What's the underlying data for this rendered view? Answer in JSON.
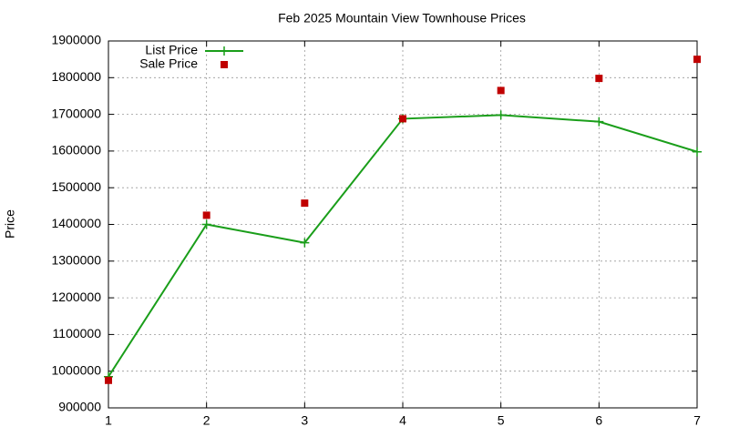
{
  "chart_data": {
    "type": "line",
    "title": "Feb 2025 Mountain View Townhouse Prices",
    "y_label": "Price",
    "x": [
      1,
      2,
      3,
      4,
      5,
      6,
      7
    ],
    "series": [
      {
        "name": "List Price",
        "color": "#1a9e1a",
        "style": "linespoints",
        "values": [
          985000,
          1400000,
          1350000,
          1688000,
          1698000,
          1680000,
          1598000
        ]
      },
      {
        "name": "Sale Price",
        "color": "#c00000",
        "style": "points",
        "values": [
          975000,
          1425000,
          1458000,
          1688000,
          1765000,
          1798000,
          1850000
        ]
      }
    ],
    "xlim": [
      1,
      7
    ],
    "xticks": [
      1,
      2,
      3,
      4,
      5,
      6,
      7
    ],
    "ylim": [
      900000,
      1900000
    ],
    "yticks": [
      900000,
      1000000,
      1100000,
      1200000,
      1300000,
      1400000,
      1500000,
      1600000,
      1700000,
      1800000,
      1900000
    ],
    "grid": true,
    "legend": "top-left"
  }
}
